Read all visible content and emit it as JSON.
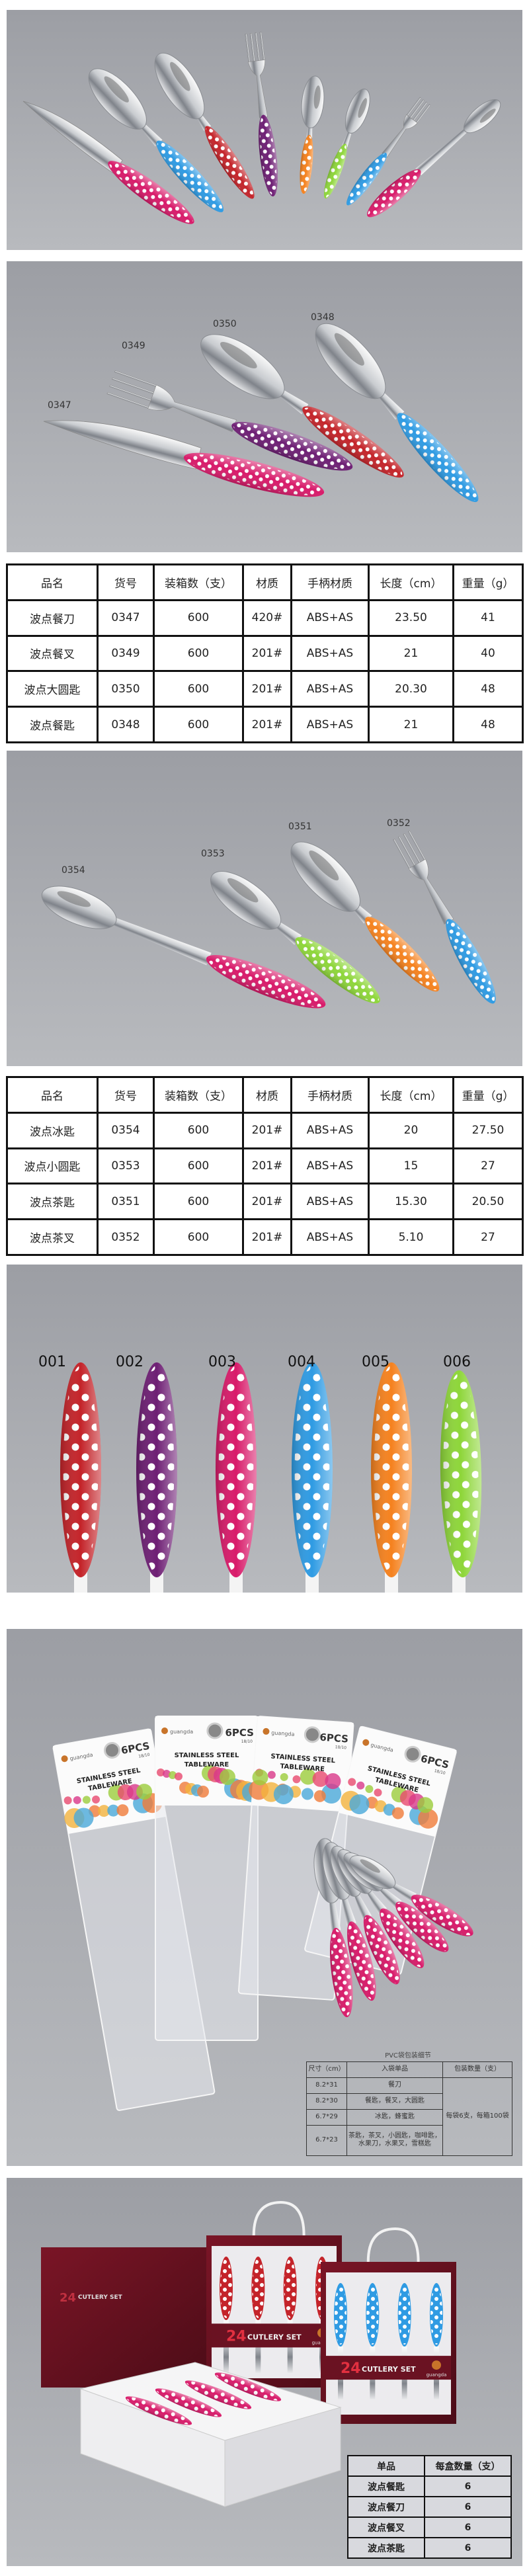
{
  "colors": {
    "pink": "#d81b6a",
    "blue": "#2f9be3",
    "red": "#c4242a",
    "purple": "#6e1f74",
    "orange": "#f5821f",
    "green": "#8ed63a",
    "background_gray": "#a9abb0",
    "box_red": "#6a1222"
  },
  "photo_labels": {
    "set_large": [
      "0347",
      "0349",
      "0350",
      "0348"
    ],
    "set_small": [
      "0354",
      "0353",
      "0351",
      "0352"
    ],
    "handle_codes": [
      "001",
      "002",
      "003",
      "004",
      "005",
      "006"
    ]
  },
  "table1": {
    "headers": [
      "品名",
      "货号",
      "装箱数（支）",
      "材质",
      "手柄材质",
      "长度（cm）",
      "重量（g）"
    ],
    "rows": [
      [
        "波点餐刀",
        "0347",
        "600",
        "420#",
        "ABS+AS",
        "23.50",
        "41"
      ],
      [
        "波点餐叉",
        "0349",
        "600",
        "201#",
        "ABS+AS",
        "21",
        "40"
      ],
      [
        "波点大圆匙",
        "0350",
        "600",
        "201#",
        "ABS+AS",
        "20.30",
        "48"
      ],
      [
        "波点餐匙",
        "0348",
        "600",
        "201#",
        "ABS+AS",
        "21",
        "48"
      ]
    ]
  },
  "table2": {
    "headers": [
      "品名",
      "货号",
      "装箱数（支）",
      "材质",
      "手柄材质",
      "长度（cm）",
      "重量（g）"
    ],
    "rows": [
      [
        "波点冰匙",
        "0354",
        "600",
        "201#",
        "ABS+AS",
        "20",
        "27.50"
      ],
      [
        "波点小圆匙",
        "0353",
        "600",
        "201#",
        "ABS+AS",
        "15",
        "27"
      ],
      [
        "波点茶匙",
        "0351",
        "600",
        "201#",
        "ABS+AS",
        "15.30",
        "20.50"
      ],
      [
        "波点茶叉",
        "0352",
        "600",
        "201#",
        "ABS+AS",
        "5.10",
        "27"
      ]
    ]
  },
  "bag_card": {
    "brand": "guangda",
    "count": "6PCS",
    "grade": "18/10",
    "line1": "STAINLESS STEEL",
    "line2": "TABLEWARE"
  },
  "pvc": {
    "title": "PVC袋包装细节",
    "headers": [
      "尺寸（cm）",
      "入袋单品",
      "包装数量（支）"
    ],
    "rows": [
      [
        "8.2*31",
        "餐刀"
      ],
      [
        "8.2*30",
        "餐匙，餐叉，大圆匙"
      ],
      [
        "6.7*29",
        "冰匙，蜂蜜匙"
      ],
      [
        "6.7*23",
        "茶匙，茶叉，小圆匙，咖啡匙，水果刀，水果叉，雪糕匙"
      ]
    ],
    "quantity": "每袋6支，每箱100袋"
  },
  "gift_box": {
    "number": "24",
    "label": "CUTLERY SET",
    "brand": "guangda"
  },
  "box_table": {
    "headers": [
      "单品",
      "每盒数量（支）"
    ],
    "rows": [
      [
        "波点餐匙",
        "6"
      ],
      [
        "波点餐刀",
        "6"
      ],
      [
        "波点餐叉",
        "6"
      ],
      [
        "波点茶匙",
        "6"
      ]
    ]
  }
}
